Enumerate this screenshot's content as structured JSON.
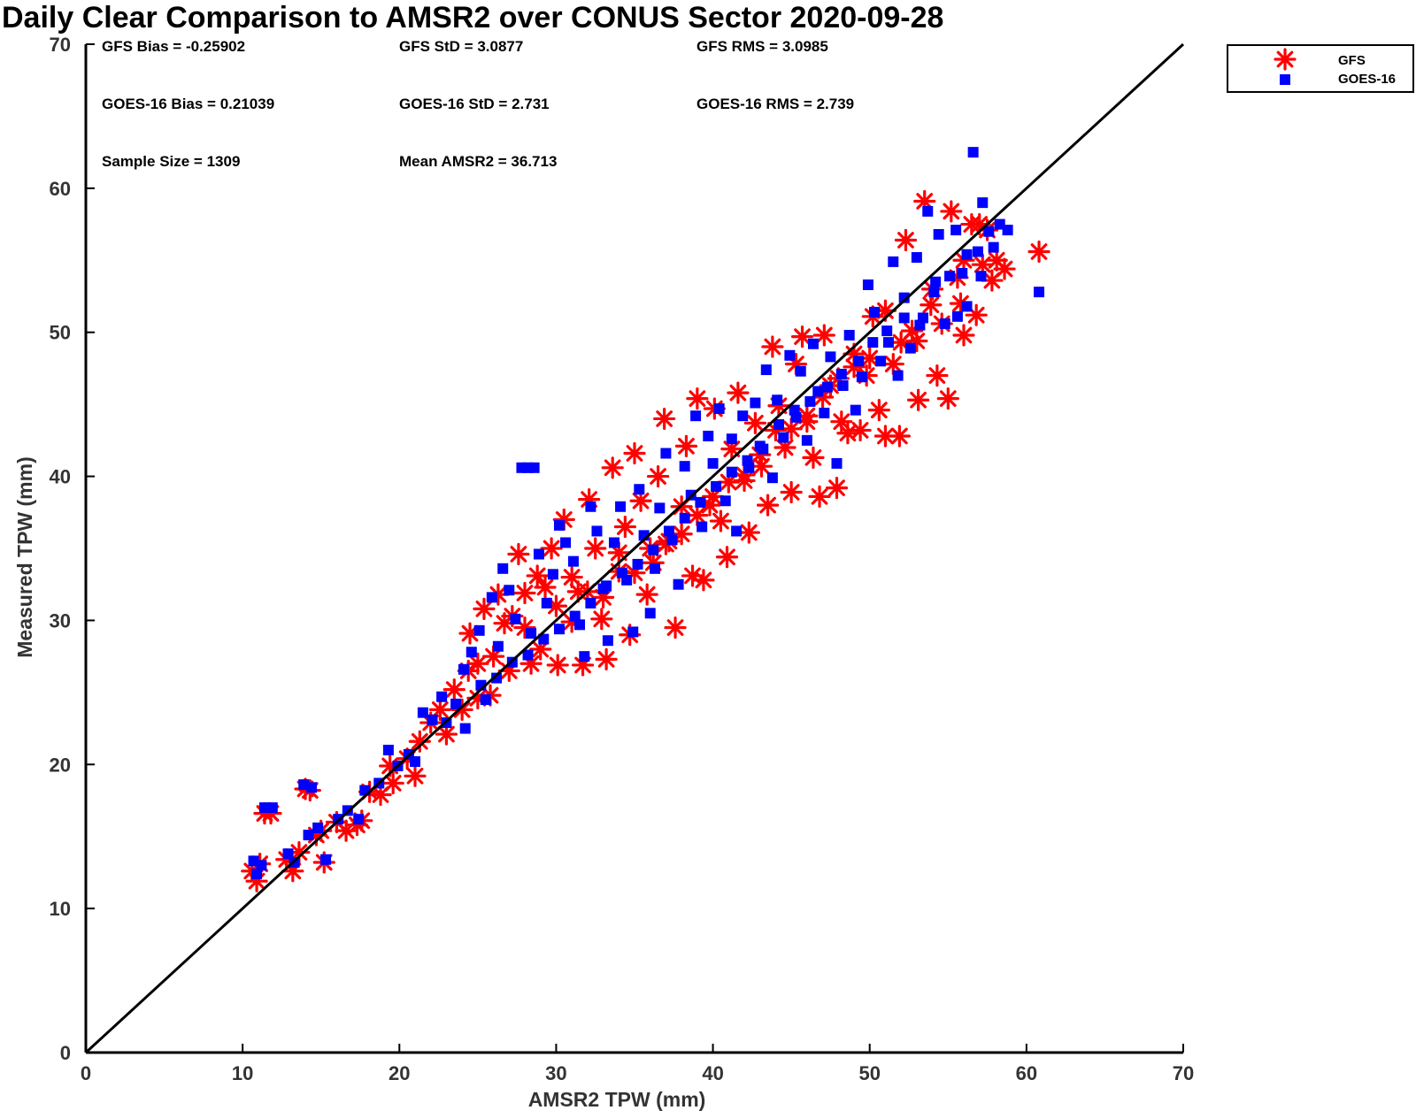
{
  "chart_data": {
    "type": "scatter",
    "title": "Daily Clear Comparison to AMSR2 over CONUS Sector 2020-09-28",
    "xlabel": "AMSR2 TPW (mm)",
    "ylabel": "Measured TPW (mm)",
    "xlim": [
      0,
      70
    ],
    "ylim": [
      0,
      70
    ],
    "xticks": [
      "0",
      "10",
      "20",
      "30",
      "40",
      "50",
      "60",
      "70"
    ],
    "yticks": [
      "0",
      "10",
      "20",
      "30",
      "40",
      "50",
      "60",
      "70"
    ],
    "grid": false,
    "legend_position": "outside top-right",
    "reference_line": "1:1",
    "stats": [
      [
        "GFS Bias = -0.25902",
        "GFS StD = 3.0877",
        "GFS RMS = 3.0985"
      ],
      [
        "GOES-16 Bias = 0.21039",
        "GOES-16 StD = 2.731",
        "GOES-16 RMS = 2.739"
      ],
      [
        "Sample Size = 1309",
        "Mean AMSR2 = 36.713",
        ""
      ]
    ],
    "series": [
      {
        "name": "GFS",
        "marker": "asterisk",
        "color": "#ff0000",
        "points": [
          [
            10.6,
            12.6
          ],
          [
            10.9,
            11.9
          ],
          [
            11.1,
            13.1
          ],
          [
            11.4,
            16.6
          ],
          [
            11.8,
            16.6
          ],
          [
            12.8,
            13.4
          ],
          [
            13.2,
            12.6
          ],
          [
            13.6,
            13.9
          ],
          [
            14.0,
            18.3
          ],
          [
            14.3,
            18.2
          ],
          [
            14.7,
            15.1
          ],
          [
            15.0,
            15.4
          ],
          [
            15.2,
            13.2
          ],
          [
            16.0,
            16.0
          ],
          [
            16.6,
            15.4
          ],
          [
            17.3,
            15.8
          ],
          [
            17.6,
            16.1
          ],
          [
            18.1,
            18.1
          ],
          [
            18.8,
            17.9
          ],
          [
            19.4,
            19.9
          ],
          [
            19.6,
            18.7
          ],
          [
            20.5,
            20.4
          ],
          [
            21.0,
            19.2
          ],
          [
            21.3,
            21.6
          ],
          [
            22.0,
            22.9
          ],
          [
            22.6,
            23.8
          ],
          [
            23.0,
            22.1
          ],
          [
            23.5,
            25.2
          ],
          [
            24.0,
            23.8
          ],
          [
            24.5,
            29.1
          ],
          [
            25.0,
            27.0
          ],
          [
            25.4,
            30.8
          ],
          [
            25.8,
            24.8
          ],
          [
            26.3,
            31.8
          ],
          [
            26.7,
            29.8
          ],
          [
            27.2,
            30.3
          ],
          [
            27.6,
            34.6
          ],
          [
            28.0,
            31.9
          ],
          [
            28.4,
            27.0
          ],
          [
            28.8,
            33.1
          ],
          [
            29.3,
            32.3
          ],
          [
            29.7,
            35.0
          ],
          [
            30.1,
            26.9
          ],
          [
            30.5,
            37.0
          ],
          [
            31.0,
            33.0
          ],
          [
            31.4,
            32.0
          ],
          [
            31.7,
            26.9
          ],
          [
            32.1,
            38.4
          ],
          [
            32.5,
            35.0
          ],
          [
            32.9,
            30.1
          ],
          [
            33.2,
            27.3
          ],
          [
            33.6,
            40.6
          ],
          [
            34.0,
            34.7
          ],
          [
            34.4,
            36.5
          ],
          [
            34.7,
            29.0
          ],
          [
            35.0,
            41.6
          ],
          [
            35.4,
            38.3
          ],
          [
            35.8,
            31.8
          ],
          [
            36.2,
            34.0
          ],
          [
            36.5,
            40.0
          ],
          [
            36.9,
            44.0
          ],
          [
            37.2,
            35.5
          ],
          [
            37.6,
            29.5
          ],
          [
            38.0,
            37.9
          ],
          [
            38.3,
            42.1
          ],
          [
            38.7,
            33.1
          ],
          [
            39.0,
            45.4
          ],
          [
            39.4,
            32.8
          ],
          [
            39.8,
            38.0
          ],
          [
            40.1,
            44.7
          ],
          [
            40.5,
            36.9
          ],
          [
            40.9,
            34.4
          ],
          [
            41.2,
            41.9
          ],
          [
            41.6,
            45.8
          ],
          [
            42.0,
            39.7
          ],
          [
            42.3,
            36.1
          ],
          [
            42.7,
            43.7
          ],
          [
            43.1,
            40.7
          ],
          [
            43.5,
            38.0
          ],
          [
            43.8,
            49.0
          ],
          [
            44.2,
            44.9
          ],
          [
            44.6,
            42.0
          ],
          [
            45.0,
            38.9
          ],
          [
            45.3,
            47.8
          ],
          [
            45.7,
            49.7
          ],
          [
            46.0,
            43.8
          ],
          [
            46.4,
            41.3
          ],
          [
            46.8,
            38.6
          ],
          [
            47.1,
            49.8
          ],
          [
            47.5,
            46.3
          ],
          [
            47.9,
            39.2
          ],
          [
            48.2,
            43.8
          ],
          [
            48.6,
            43.0
          ],
          [
            49.0,
            48.5
          ],
          [
            49.4,
            43.2
          ],
          [
            49.8,
            47.0
          ],
          [
            50.2,
            51.1
          ],
          [
            50.6,
            44.6
          ],
          [
            51.0,
            42.8
          ],
          [
            51.5,
            47.8
          ],
          [
            51.9,
            42.8
          ],
          [
            52.3,
            56.4
          ],
          [
            52.7,
            50.1
          ],
          [
            53.1,
            45.3
          ],
          [
            53.5,
            59.1
          ],
          [
            53.9,
            51.9
          ],
          [
            54.3,
            47.0
          ],
          [
            54.6,
            50.6
          ],
          [
            55.0,
            45.4
          ],
          [
            55.2,
            58.4
          ],
          [
            55.6,
            53.8
          ],
          [
            56.0,
            49.8
          ],
          [
            56.5,
            57.5
          ],
          [
            56.8,
            51.2
          ],
          [
            57.2,
            54.7
          ],
          [
            57.5,
            57.1
          ],
          [
            57.8,
            53.6
          ],
          [
            58.1,
            55.0
          ],
          [
            58.6,
            54.4
          ],
          [
            60.8,
            55.6
          ],
          [
            57.0,
            57.5
          ],
          [
            55.8,
            52.0
          ],
          [
            53.0,
            49.4
          ],
          [
            51.0,
            51.5
          ],
          [
            49.0,
            47.6
          ],
          [
            47.0,
            45.5
          ],
          [
            45.0,
            43.3
          ],
          [
            43.0,
            41.5
          ],
          [
            41.0,
            39.6
          ],
          [
            39.0,
            37.3
          ],
          [
            37.0,
            35.3
          ],
          [
            35.0,
            33.3
          ],
          [
            33.0,
            31.6
          ],
          [
            31.0,
            29.9
          ],
          [
            29.0,
            28.0
          ],
          [
            27.0,
            26.5
          ],
          [
            25.0,
            24.6
          ],
          [
            24.4,
            26.5
          ],
          [
            26.0,
            27.5
          ],
          [
            28.0,
            29.5
          ],
          [
            30.0,
            31.0
          ],
          [
            32.0,
            32.0
          ],
          [
            34.0,
            33.4
          ],
          [
            36.0,
            35.0
          ],
          [
            38.0,
            36.0
          ],
          [
            40.0,
            38.6
          ],
          [
            42.0,
            40.1
          ],
          [
            44.0,
            43.2
          ],
          [
            46.0,
            44.2
          ],
          [
            48.0,
            46.8
          ],
          [
            50.0,
            48.2
          ],
          [
            52.0,
            49.3
          ],
          [
            54.0,
            53.0
          ],
          [
            56.0,
            55.0
          ]
        ]
      },
      {
        "name": "GOES-16",
        "marker": "square",
        "color": "#0000ff",
        "points": [
          [
            10.7,
            13.3
          ],
          [
            10.9,
            12.4
          ],
          [
            11.2,
            13.0
          ],
          [
            11.4,
            17.0
          ],
          [
            11.9,
            17.0
          ],
          [
            12.9,
            13.8
          ],
          [
            13.3,
            13.2
          ],
          [
            13.9,
            18.6
          ],
          [
            14.4,
            18.4
          ],
          [
            14.2,
            15.1
          ],
          [
            14.8,
            15.6
          ],
          [
            15.3,
            13.4
          ],
          [
            16.1,
            16.2
          ],
          [
            16.7,
            16.8
          ],
          [
            17.4,
            16.2
          ],
          [
            17.8,
            18.2
          ],
          [
            18.7,
            18.7
          ],
          [
            19.3,
            21.0
          ],
          [
            19.9,
            19.9
          ],
          [
            20.6,
            20.7
          ],
          [
            21.0,
            20.2
          ],
          [
            21.5,
            23.6
          ],
          [
            22.1,
            23.1
          ],
          [
            22.7,
            24.7
          ],
          [
            23.0,
            22.9
          ],
          [
            23.6,
            24.2
          ],
          [
            24.1,
            26.6
          ],
          [
            24.6,
            27.8
          ],
          [
            25.1,
            29.3
          ],
          [
            25.5,
            24.5
          ],
          [
            25.9,
            31.6
          ],
          [
            26.3,
            28.2
          ],
          [
            26.6,
            33.6
          ],
          [
            27.0,
            32.1
          ],
          [
            27.4,
            30.1
          ],
          [
            27.8,
            40.6
          ],
          [
            28.2,
            40.6
          ],
          [
            28.6,
            40.6
          ],
          [
            28.4,
            29.1
          ],
          [
            28.9,
            34.6
          ],
          [
            29.4,
            31.2
          ],
          [
            29.8,
            33.2
          ],
          [
            30.2,
            36.6
          ],
          [
            30.6,
            35.4
          ],
          [
            31.1,
            34.1
          ],
          [
            31.5,
            29.7
          ],
          [
            31.8,
            27.5
          ],
          [
            32.2,
            37.9
          ],
          [
            32.6,
            36.2
          ],
          [
            33.0,
            32.2
          ],
          [
            33.3,
            28.6
          ],
          [
            33.7,
            35.4
          ],
          [
            34.1,
            37.9
          ],
          [
            34.5,
            32.8
          ],
          [
            34.9,
            29.2
          ],
          [
            35.3,
            39.1
          ],
          [
            35.6,
            35.9
          ],
          [
            36.0,
            30.5
          ],
          [
            36.3,
            33.6
          ],
          [
            36.6,
            37.8
          ],
          [
            37.0,
            41.6
          ],
          [
            37.4,
            35.6
          ],
          [
            37.8,
            32.5
          ],
          [
            38.2,
            40.7
          ],
          [
            38.6,
            38.7
          ],
          [
            38.9,
            44.2
          ],
          [
            39.3,
            36.5
          ],
          [
            39.7,
            42.8
          ],
          [
            40.0,
            40.9
          ],
          [
            40.4,
            44.7
          ],
          [
            40.8,
            38.3
          ],
          [
            41.2,
            42.6
          ],
          [
            41.5,
            36.2
          ],
          [
            41.9,
            44.2
          ],
          [
            42.3,
            40.6
          ],
          [
            42.7,
            45.1
          ],
          [
            43.0,
            42.1
          ],
          [
            43.4,
            47.4
          ],
          [
            43.8,
            39.9
          ],
          [
            44.1,
            45.3
          ],
          [
            44.5,
            42.7
          ],
          [
            44.9,
            48.4
          ],
          [
            45.2,
            44.6
          ],
          [
            45.6,
            47.3
          ],
          [
            46.0,
            42.5
          ],
          [
            46.4,
            49.2
          ],
          [
            46.7,
            45.9
          ],
          [
            47.1,
            44.4
          ],
          [
            47.5,
            48.3
          ],
          [
            47.9,
            40.9
          ],
          [
            48.3,
            46.3
          ],
          [
            48.7,
            49.8
          ],
          [
            49.1,
            44.6
          ],
          [
            49.5,
            46.9
          ],
          [
            49.9,
            53.3
          ],
          [
            50.3,
            51.4
          ],
          [
            50.7,
            48.0
          ],
          [
            51.1,
            50.1
          ],
          [
            51.5,
            54.9
          ],
          [
            51.8,
            47.0
          ],
          [
            52.2,
            52.4
          ],
          [
            52.6,
            48.9
          ],
          [
            53.0,
            55.2
          ],
          [
            53.4,
            51.0
          ],
          [
            53.7,
            58.4
          ],
          [
            54.1,
            52.8
          ],
          [
            54.4,
            56.8
          ],
          [
            54.8,
            50.6
          ],
          [
            55.1,
            53.9
          ],
          [
            55.5,
            57.1
          ],
          [
            55.9,
            54.1
          ],
          [
            56.2,
            51.8
          ],
          [
            56.6,
            62.5
          ],
          [
            56.9,
            55.6
          ],
          [
            57.2,
            59.0
          ],
          [
            57.6,
            57.0
          ],
          [
            57.9,
            55.9
          ],
          [
            58.3,
            57.5
          ],
          [
            58.8,
            57.1
          ],
          [
            60.8,
            52.8
          ],
          [
            57.1,
            53.9
          ],
          [
            55.6,
            51.1
          ],
          [
            53.2,
            50.5
          ],
          [
            51.2,
            49.3
          ],
          [
            49.3,
            48.0
          ],
          [
            47.3,
            46.2
          ],
          [
            45.3,
            44.1
          ],
          [
            43.2,
            41.9
          ],
          [
            41.2,
            40.3
          ],
          [
            39.2,
            38.2
          ],
          [
            37.2,
            36.2
          ],
          [
            35.2,
            33.9
          ],
          [
            33.2,
            32.4
          ],
          [
            31.2,
            30.3
          ],
          [
            29.2,
            28.7
          ],
          [
            27.2,
            27.1
          ],
          [
            25.2,
            25.5
          ],
          [
            24.2,
            22.5
          ],
          [
            26.2,
            26.0
          ],
          [
            28.2,
            27.6
          ],
          [
            30.2,
            29.4
          ],
          [
            32.2,
            31.2
          ],
          [
            34.2,
            33.3
          ],
          [
            36.2,
            34.9
          ],
          [
            38.2,
            37.1
          ],
          [
            40.2,
            39.3
          ],
          [
            42.2,
            41.1
          ],
          [
            44.2,
            43.6
          ],
          [
            46.2,
            45.2
          ],
          [
            48.2,
            47.1
          ],
          [
            50.2,
            49.3
          ],
          [
            52.2,
            51.0
          ],
          [
            54.2,
            53.5
          ],
          [
            56.2,
            55.4
          ]
        ]
      }
    ]
  }
}
